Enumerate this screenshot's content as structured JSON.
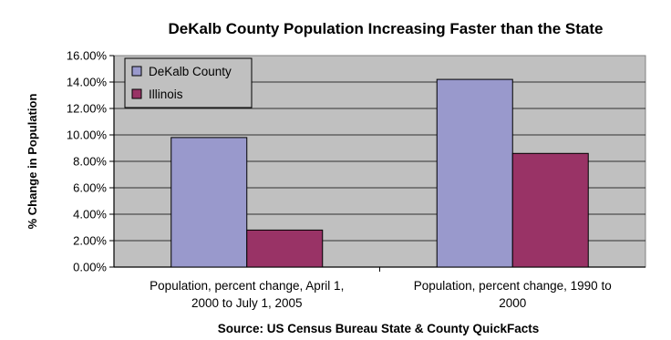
{
  "chart_data": {
    "type": "bar",
    "title": "DeKalb County Population Increasing Faster than the State",
    "ylabel": "% Change in Population",
    "xlabel": "Source: US Census Bureau State & County QuickFacts",
    "categories": [
      [
        "Population, percent change, April 1,",
        "2000 to July 1, 2005"
      ],
      [
        "Population, percent change, 1990 to",
        "2000"
      ]
    ],
    "series": [
      {
        "name": "DeKalb County",
        "values": [
          9.8,
          14.2
        ],
        "color": "#9999cc"
      },
      {
        "name": "Illinois",
        "values": [
          2.8,
          8.6
        ],
        "color": "#993366"
      }
    ],
    "ylim": [
      0,
      16
    ],
    "yticks": [
      "0.00%",
      "2.00%",
      "4.00%",
      "6.00%",
      "8.00%",
      "10.00%",
      "12.00%",
      "14.00%",
      "16.00%"
    ],
    "grid": true,
    "legend_position": "top-left",
    "plot_background": "#c0c0c0"
  }
}
